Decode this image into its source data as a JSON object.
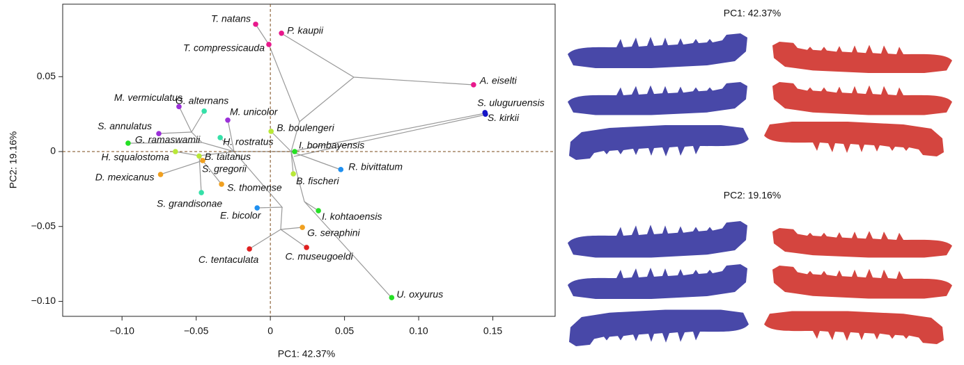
{
  "chart_data": {
    "type": "scatter",
    "x_label": "PC1: 42.37%",
    "y_label": "PC2: 19.16%",
    "xlim": [
      -0.14,
      0.192
    ],
    "ylim": [
      -0.11,
      0.0984
    ],
    "xticks": [
      {
        "value": -0.1,
        "label": "−0.10"
      },
      {
        "value": -0.05,
        "label": "−0.05"
      },
      0,
      0.05,
      {
        "value": 0.1,
        "label": "0.10"
      },
      0.15
    ],
    "yticks": [
      0.05,
      0,
      {
        "value": -0.05,
        "label": "−0.05"
      },
      {
        "value": -0.1,
        "label": "−0.10"
      }
    ],
    "points": [
      {
        "name": "T. natans",
        "x": -0.0099,
        "y": 0.085,
        "color": "#e8198c"
      },
      {
        "name": "P. kaupii",
        "x": 0.0075,
        "y": 0.079,
        "color": "#e8198c"
      },
      {
        "name": "T. compressicauda",
        "x": -0.001,
        "y": 0.0715,
        "color": "#e8198c"
      },
      {
        "name": "A. eiselti",
        "x": 0.137,
        "y": 0.0446,
        "color": "#e8198c"
      },
      {
        "name": "S. uluguruensis",
        "x": 0.1447,
        "y": 0.026,
        "color": "#1515c8"
      },
      {
        "name": "S. kirkii",
        "x": 0.145,
        "y": 0.025,
        "color": "#1515c8"
      },
      {
        "name": "M. vermiculatus",
        "x": -0.0616,
        "y": 0.03,
        "color": "#9b30d8"
      },
      {
        "name": "G. alternans",
        "x": -0.0446,
        "y": 0.027,
        "color": "#35e0a8"
      },
      {
        "name": "M. unicolor",
        "x": -0.0287,
        "y": 0.021,
        "color": "#9b30d8"
      },
      {
        "name": "S. annulatus",
        "x": -0.0752,
        "y": 0.012,
        "color": "#9b30d8"
      },
      {
        "name": "B. boulengeri",
        "x": 0.0005,
        "y": 0.0135,
        "color": "#b8e838"
      },
      {
        "name": "G. ramaswamii",
        "x": -0.0959,
        "y": 0.0056,
        "color": "#25e025"
      },
      {
        "name": "H. rostratus",
        "x": -0.0338,
        "y": 0.0093,
        "color": "#35e0a8"
      },
      {
        "name": "I. bombayensis",
        "x": 0.0164,
        "y": 0.0,
        "color": "#25e025"
      },
      {
        "name": "H. squalostoma",
        "x": -0.064,
        "y": 0.0,
        "color": "#b8e838"
      },
      {
        "name": "B. taitanus",
        "x": -0.048,
        "y": -0.003,
        "color": "#b8e838"
      },
      {
        "name": "S. gregorii",
        "x": -0.0456,
        "y": -0.006,
        "color": "#f0a020"
      },
      {
        "name": "D. mexicanus",
        "x": -0.074,
        "y": -0.0153,
        "color": "#f0a020"
      },
      {
        "name": "S. thomense",
        "x": -0.0329,
        "y": -0.0218,
        "color": "#f0a020"
      },
      {
        "name": "S. grandisonae",
        "x": -0.0465,
        "y": -0.0274,
        "color": "#35e0a8"
      },
      {
        "name": "B. fischeri",
        "x": 0.0155,
        "y": -0.0149,
        "color": "#b8e838"
      },
      {
        "name": "R. bivittatum",
        "x": 0.0475,
        "y": -0.012,
        "color": "#2090f0"
      },
      {
        "name": "E. bicolor",
        "x": -0.0089,
        "y": -0.0376,
        "color": "#2090f0"
      },
      {
        "name": "I. kohtaoensis",
        "x": 0.0324,
        "y": -0.0395,
        "color": "#25e025"
      },
      {
        "name": "G. seraphini",
        "x": 0.0216,
        "y": -0.0506,
        "color": "#f0a020"
      },
      {
        "name": "C. tentaculata",
        "x": -0.0141,
        "y": -0.065,
        "color": "#e02020"
      },
      {
        "name": "C. museugoeldi",
        "x": 0.0244,
        "y": -0.064,
        "color": "#e02020"
      },
      {
        "name": "U. oxyurus",
        "x": 0.0818,
        "y": -0.0975,
        "color": "#25e025"
      }
    ]
  },
  "panels": [
    {
      "title": "PC1: 42.37%"
    },
    {
      "title": "PC2: 19.16%"
    }
  ]
}
